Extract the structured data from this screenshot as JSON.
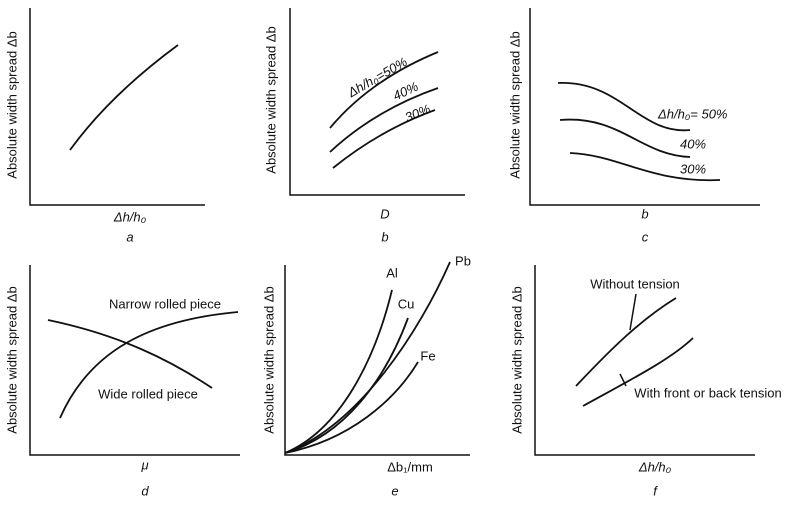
{
  "panels": [
    {
      "y_label": "Absolute width spread Δb",
      "x_label": "Δh/h₀",
      "caption": "a",
      "annotations": []
    },
    {
      "y_label": "Absolute width spread Δb",
      "x_label": "D",
      "caption": "b",
      "annotations": [
        "Δh/h₀=50%",
        "40%",
        "30%"
      ]
    },
    {
      "y_label": "Absolute width spread Δb",
      "x_label": "b",
      "caption": "c",
      "annotations": [
        "Δh/h₀= 50%",
        "40%",
        "30%"
      ]
    },
    {
      "y_label": "Absolute width spread Δb",
      "x_label": "μ",
      "caption": "d",
      "annotations": [
        "Narrow rolled piece",
        "Wide rolled piece"
      ]
    },
    {
      "y_label": "Absolute width spread Δb",
      "x_label": "Δb₁/mm",
      "caption": "e",
      "annotations": [
        "Al",
        "Cu",
        "Fe",
        "Pb"
      ]
    },
    {
      "y_label": "Absolute width spread Δb",
      "x_label": "Δh/h₀",
      "caption": "f",
      "annotations": [
        "Without tension",
        "With front or back tension"
      ]
    }
  ]
}
